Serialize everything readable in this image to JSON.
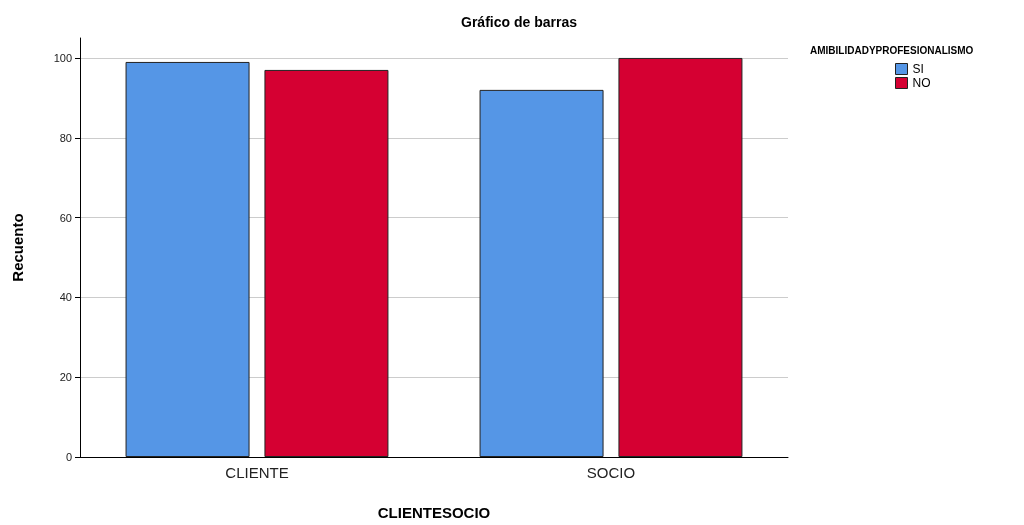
{
  "chart_data": {
    "type": "bar",
    "title": "Gráfico de barras",
    "xlabel": "CLIENTESOCIO",
    "ylabel": "Recuento",
    "legend_title": "AMIBILIDADYPROFESIONALISMO",
    "categories": [
      "CLIENTE",
      "SOCIO"
    ],
    "series": [
      {
        "name": "SI",
        "color": "#5596e6",
        "values": [
          99,
          92
        ]
      },
      {
        "name": "NO",
        "color": "#d50032",
        "values": [
          97,
          100
        ]
      }
    ],
    "ylim": [
      0,
      105
    ],
    "yticks": [
      0,
      20,
      40,
      60,
      80,
      100
    ],
    "grid": "y",
    "legend": "top right"
  }
}
